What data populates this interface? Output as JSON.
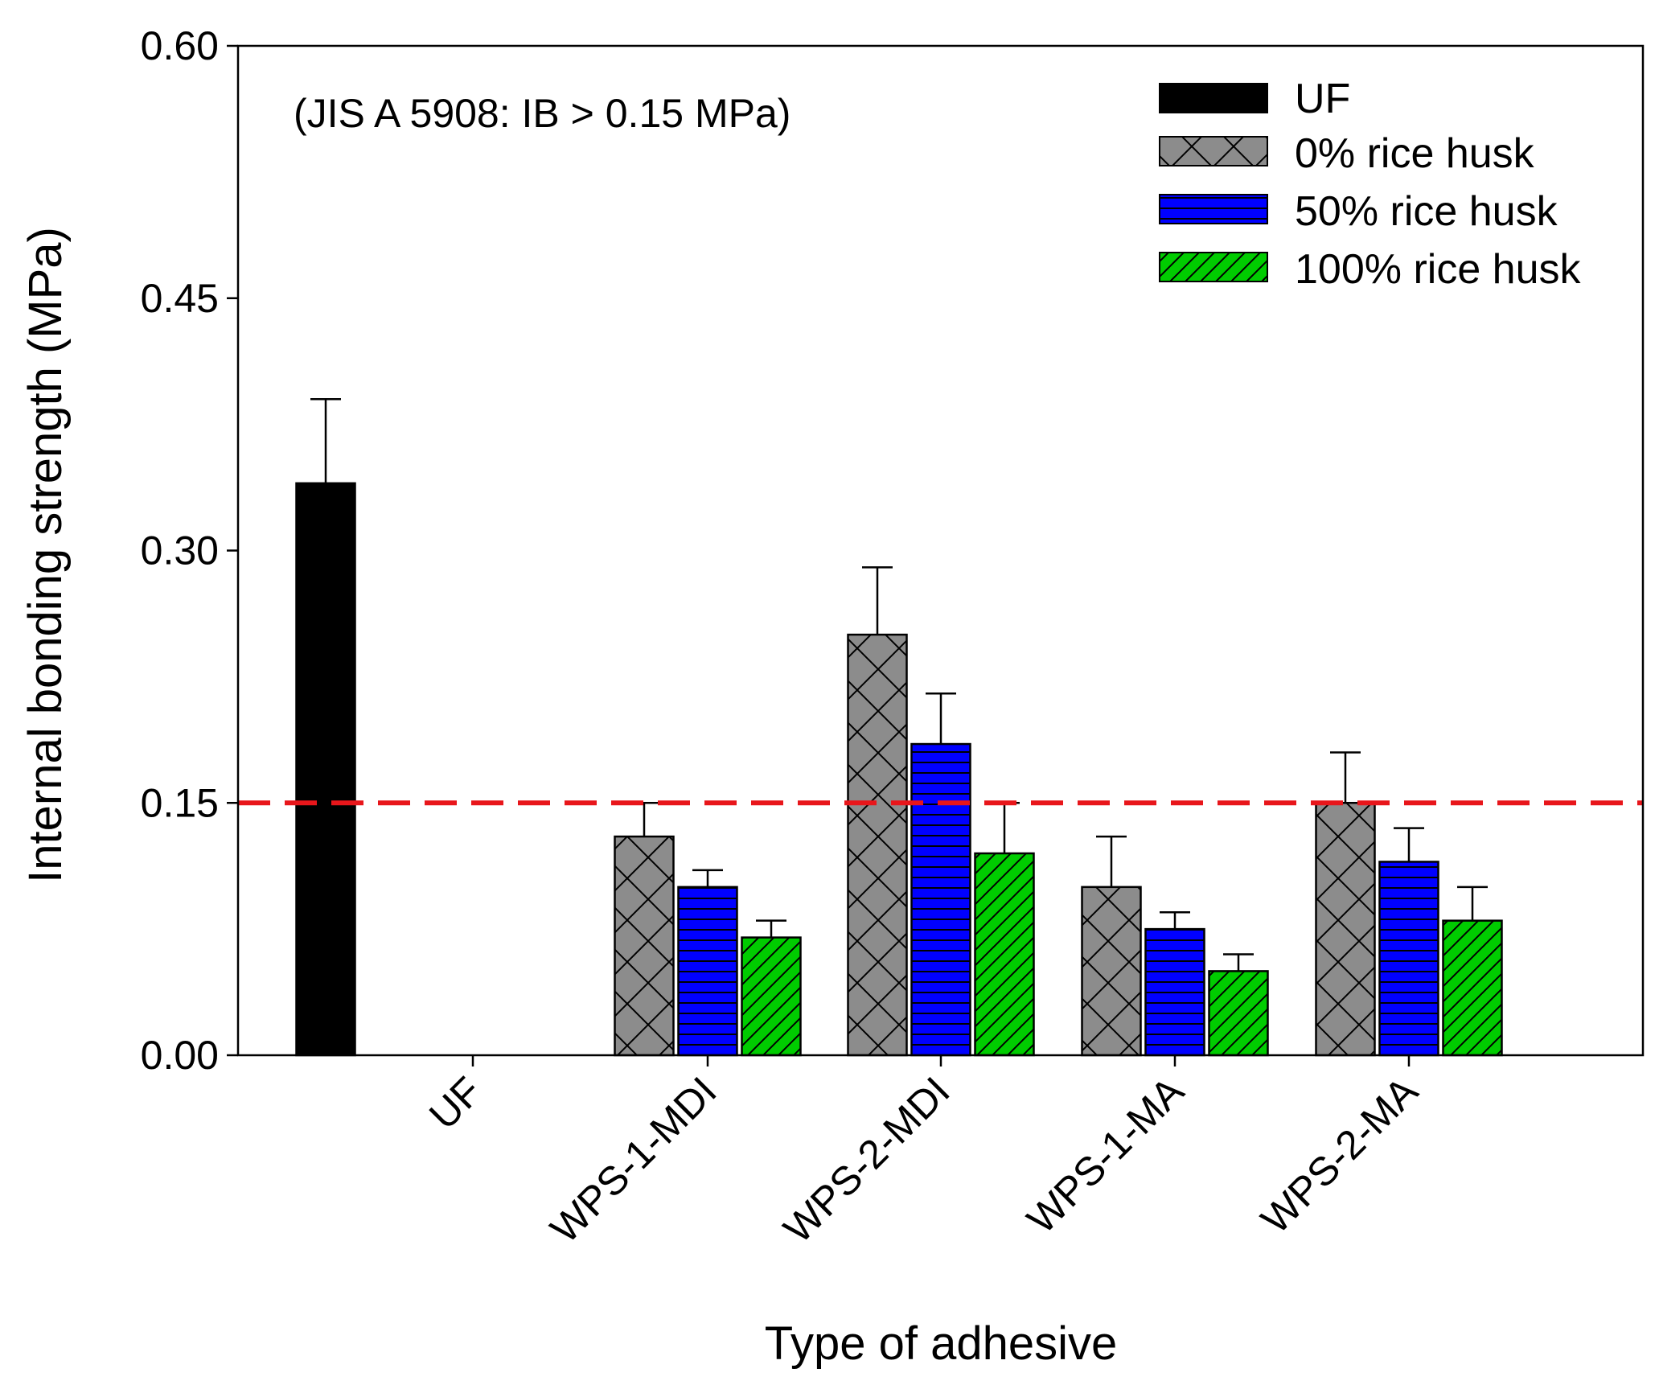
{
  "chart_data": {
    "type": "bar",
    "title": "",
    "xlabel": "Type of adhesive",
    "ylabel": "Internal bonding strength (MPa)",
    "ylim": [
      0,
      0.6
    ],
    "yticks": [
      "0.00",
      "0.15",
      "0.30",
      "0.45",
      "0.60"
    ],
    "ytick_values": [
      0,
      0.15,
      0.3,
      0.45,
      0.6
    ],
    "grid": false,
    "annotation": "(JIS A 5908: IB > 0.15 MPa)",
    "reference_line": {
      "value": 0.15,
      "color": "#e8161b",
      "style": "dashed"
    },
    "legend_position": "top-right",
    "categories": [
      "UF",
      "WPS-1-MDI",
      "WPS-2-MDI",
      "WPS-1-MA",
      "WPS-2-MA"
    ],
    "series": [
      {
        "name": "UF",
        "pattern": "solid",
        "color": "#000000",
        "values": [
          0.34,
          null,
          null,
          null,
          null
        ],
        "errors": [
          0.05,
          null,
          null,
          null,
          null
        ]
      },
      {
        "name": "0% rice husk",
        "pattern": "crosshatch",
        "color": "#8c8c8c",
        "values": [
          null,
          0.13,
          0.25,
          0.1,
          0.15
        ],
        "errors": [
          null,
          0.02,
          0.04,
          0.03,
          0.03
        ]
      },
      {
        "name": "50% rice husk",
        "pattern": "horizontal",
        "color": "#0000ff",
        "values": [
          null,
          0.1,
          0.185,
          0.075,
          0.115
        ],
        "errors": [
          null,
          0.01,
          0.03,
          0.01,
          0.02
        ]
      },
      {
        "name": "100% rice husk",
        "pattern": "diagonal",
        "color": "#00cc00",
        "values": [
          null,
          0.07,
          0.12,
          0.05,
          0.08
        ],
        "errors": [
          null,
          0.01,
          0.03,
          0.01,
          0.02
        ]
      }
    ]
  }
}
